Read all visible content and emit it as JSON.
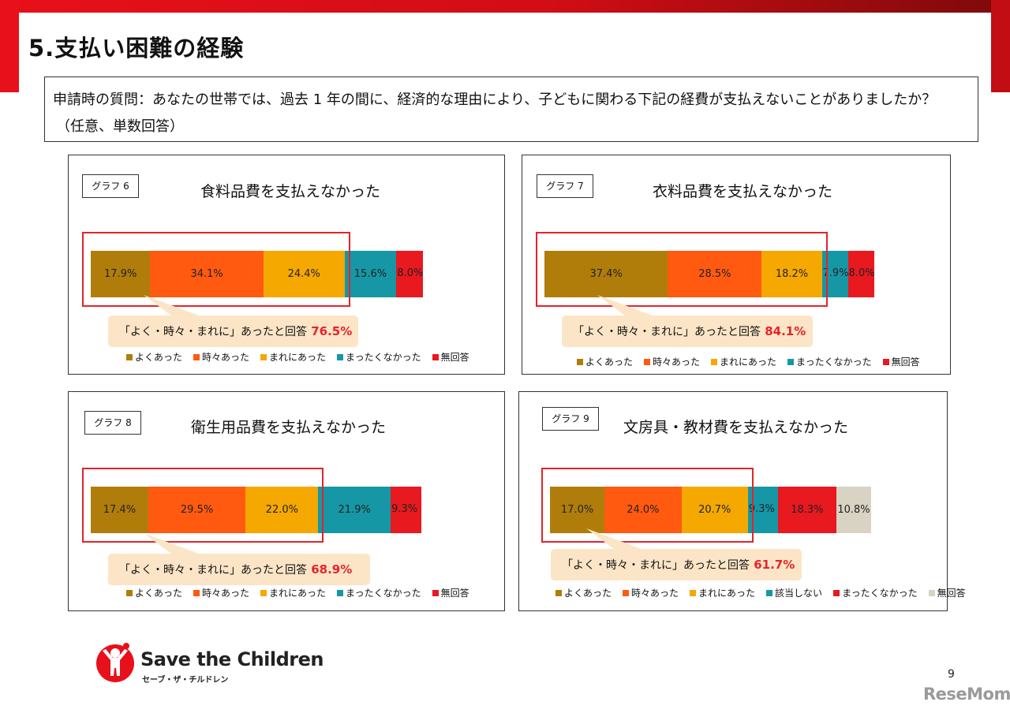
{
  "page": {
    "title": "5.支払い困難の経験",
    "question_line1": "申請時の質問：あなたの世帯では、過去 1 年の間に、経済的な理由により、子どもに関わる下記の経費が支払えないことがありましたか？",
    "question_line2": "（任意、単数回答）",
    "page_number": "9",
    "logo_name": "Save the Children",
    "logo_sub": "セーブ・ザ・チルドレン",
    "watermark": "ReseMom"
  },
  "colors": {
    "often": "#b07d0b",
    "sometimes": "#ff5a10",
    "rarely": "#f4a800",
    "not_applicable": "#1597a6",
    "never": "#e8191f",
    "no_answer": "#d9d3c4",
    "highlight": "#e3242b",
    "callout_bg": "#fbe5c6"
  },
  "chart_data": [
    {
      "type": "bar",
      "orientation": "horizontal-stacked",
      "graph_label": "グラフ 6",
      "title": "食料品費を支払えなかった",
      "series": [
        {
          "name": "よくあった",
          "value": 17.9,
          "label": "17.9%",
          "color": "#b07d0b"
        },
        {
          "name": "時々あった",
          "value": 34.1,
          "label": "34.1%",
          "color": "#ff5a10"
        },
        {
          "name": "まれにあった",
          "value": 24.4,
          "label": "24.4%",
          "color": "#f4a800"
        },
        {
          "name": "まったくなかった",
          "value": 15.6,
          "label": "15.6%",
          "color": "#1597a6"
        },
        {
          "name": "無回答",
          "value": 8.0,
          "label": "8.0%",
          "color": "#e8191f"
        }
      ],
      "callout_text": "「よく・時々・まれに」あったと回答",
      "callout_value": "76.5%",
      "highlight_count": 3
    },
    {
      "type": "bar",
      "orientation": "horizontal-stacked",
      "graph_label": "グラフ 7",
      "title": "衣料品費を支払えなかった",
      "series": [
        {
          "name": "よくあった",
          "value": 37.4,
          "label": "37.4%",
          "color": "#b07d0b"
        },
        {
          "name": "時々あった",
          "value": 28.5,
          "label": "28.5%",
          "color": "#ff5a10"
        },
        {
          "name": "まれにあった",
          "value": 18.2,
          "label": "18.2%",
          "color": "#f4a800"
        },
        {
          "name": "まったくなかった",
          "value": 7.9,
          "label": "7.9%",
          "color": "#1597a6"
        },
        {
          "name": "無回答",
          "value": 8.0,
          "label": "8.0%",
          "color": "#e8191f"
        }
      ],
      "callout_text": "「よく・時々・まれに」あったと回答",
      "callout_value": "84.1%",
      "highlight_count": 3
    },
    {
      "type": "bar",
      "orientation": "horizontal-stacked",
      "graph_label": "グラフ 8",
      "title": "衛生用品費を支払えなかった",
      "series": [
        {
          "name": "よくあった",
          "value": 17.4,
          "label": "17.4%",
          "color": "#b07d0b"
        },
        {
          "name": "時々あった",
          "value": 29.5,
          "label": "29.5%",
          "color": "#ff5a10"
        },
        {
          "name": "まれにあった",
          "value": 22.0,
          "label": "22.0%",
          "color": "#f4a800"
        },
        {
          "name": "まったくなかった",
          "value": 21.9,
          "label": "21.9%",
          "color": "#1597a6"
        },
        {
          "name": "無回答",
          "value": 9.3,
          "label": "9.3%",
          "color": "#e8191f"
        }
      ],
      "callout_text": "「よく・時々・まれに」あったと回答",
      "callout_value": "68.9%",
      "highlight_count": 3
    },
    {
      "type": "bar",
      "orientation": "horizontal-stacked",
      "graph_label": "グラフ 9",
      "title": "文房具・教材費を支払えなかった",
      "series": [
        {
          "name": "よくあった",
          "value": 17.0,
          "label": "17.0%",
          "color": "#b07d0b"
        },
        {
          "name": "時々あった",
          "value": 24.0,
          "label": "24.0%",
          "color": "#ff5a10"
        },
        {
          "name": "まれにあった",
          "value": 20.7,
          "label": "20.7%",
          "color": "#f4a800"
        },
        {
          "name": "該当しない",
          "value": 9.3,
          "label": "9.3%",
          "color": "#1597a6"
        },
        {
          "name": "まったくなかった",
          "value": 18.3,
          "label": "18.3%",
          "color": "#e8191f"
        },
        {
          "name": "無回答",
          "value": 10.8,
          "label": "10.8%",
          "color": "#d9d3c4"
        }
      ],
      "callout_text": "「よく・時々・まれに」あったと回答",
      "callout_value": "61.7%",
      "highlight_count": 3
    }
  ]
}
